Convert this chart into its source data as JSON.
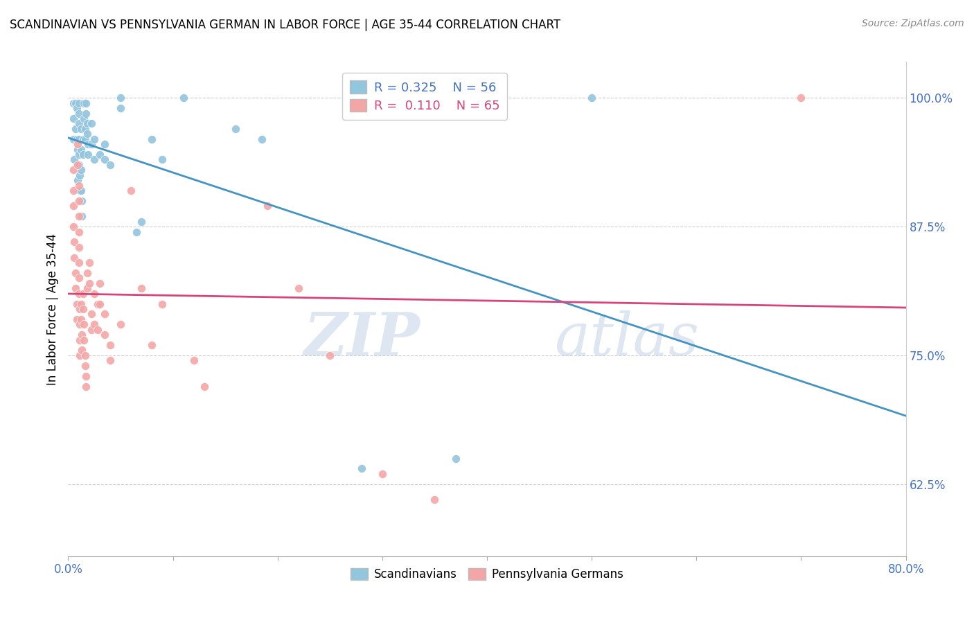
{
  "title": "SCANDINAVIAN VS PENNSYLVANIA GERMAN IN LABOR FORCE | AGE 35-44 CORRELATION CHART",
  "source": "Source: ZipAtlas.com",
  "ylabel": "In Labor Force | Age 35-44",
  "xlim": [
    0.0,
    0.8
  ],
  "ylim": [
    0.555,
    1.035
  ],
  "yticks": [
    0.625,
    0.75,
    0.875,
    1.0
  ],
  "ytick_labels": [
    "62.5%",
    "75.0%",
    "87.5%",
    "100.0%"
  ],
  "xticks": [
    0.0,
    0.1,
    0.2,
    0.3,
    0.4,
    0.5,
    0.6,
    0.7,
    0.8
  ],
  "xtick_labels": [
    "0.0%",
    "",
    "",
    "",
    "",
    "",
    "",
    "",
    "80.0%"
  ],
  "blue_color": "#92c5de",
  "pink_color": "#f4a6a6",
  "blue_line_color": "#4393c3",
  "pink_line_color": "#d6447a",
  "legend_blue_R": "0.325",
  "legend_blue_N": "56",
  "legend_pink_R": "0.110",
  "legend_pink_N": "65",
  "watermark_zip": "ZIP",
  "watermark_atlas": "atlas",
  "scandinavians": [
    [
      0.005,
      0.96
    ],
    [
      0.005,
      0.98
    ],
    [
      0.005,
      0.995
    ],
    [
      0.006,
      0.94
    ],
    [
      0.007,
      0.995
    ],
    [
      0.007,
      0.97
    ],
    [
      0.008,
      0.99
    ],
    [
      0.008,
      0.96
    ],
    [
      0.009,
      0.95
    ],
    [
      0.009,
      0.92
    ],
    [
      0.01,
      0.995
    ],
    [
      0.01,
      0.985
    ],
    [
      0.01,
      0.975
    ],
    [
      0.01,
      0.96
    ],
    [
      0.01,
      0.945
    ],
    [
      0.01,
      0.935
    ],
    [
      0.011,
      0.925
    ],
    [
      0.011,
      0.91
    ],
    [
      0.012,
      0.97
    ],
    [
      0.012,
      0.95
    ],
    [
      0.012,
      0.93
    ],
    [
      0.012,
      0.91
    ],
    [
      0.013,
      0.9
    ],
    [
      0.013,
      0.885
    ],
    [
      0.014,
      0.96
    ],
    [
      0.014,
      0.945
    ],
    [
      0.015,
      0.995
    ],
    [
      0.015,
      0.98
    ],
    [
      0.016,
      0.97
    ],
    [
      0.016,
      0.96
    ],
    [
      0.017,
      0.995
    ],
    [
      0.017,
      0.985
    ],
    [
      0.018,
      0.975
    ],
    [
      0.018,
      0.965
    ],
    [
      0.019,
      0.955
    ],
    [
      0.019,
      0.945
    ],
    [
      0.022,
      0.975
    ],
    [
      0.022,
      0.955
    ],
    [
      0.025,
      0.94
    ],
    [
      0.025,
      0.96
    ],
    [
      0.03,
      0.945
    ],
    [
      0.035,
      0.955
    ],
    [
      0.035,
      0.94
    ],
    [
      0.04,
      0.935
    ],
    [
      0.05,
      0.99
    ],
    [
      0.05,
      1.0
    ],
    [
      0.065,
      0.87
    ],
    [
      0.07,
      0.88
    ],
    [
      0.08,
      0.96
    ],
    [
      0.09,
      0.94
    ],
    [
      0.11,
      1.0
    ],
    [
      0.16,
      0.97
    ],
    [
      0.185,
      0.96
    ],
    [
      0.28,
      0.64
    ],
    [
      0.37,
      0.65
    ],
    [
      0.5,
      1.0
    ]
  ],
  "pennsylvania_germans": [
    [
      0.005,
      0.93
    ],
    [
      0.005,
      0.91
    ],
    [
      0.005,
      0.895
    ],
    [
      0.005,
      0.875
    ],
    [
      0.006,
      0.86
    ],
    [
      0.006,
      0.845
    ],
    [
      0.007,
      0.83
    ],
    [
      0.007,
      0.815
    ],
    [
      0.008,
      0.8
    ],
    [
      0.008,
      0.785
    ],
    [
      0.009,
      0.955
    ],
    [
      0.009,
      0.935
    ],
    [
      0.01,
      0.915
    ],
    [
      0.01,
      0.9
    ],
    [
      0.01,
      0.885
    ],
    [
      0.01,
      0.87
    ],
    [
      0.01,
      0.855
    ],
    [
      0.01,
      0.84
    ],
    [
      0.01,
      0.825
    ],
    [
      0.01,
      0.81
    ],
    [
      0.011,
      0.795
    ],
    [
      0.011,
      0.78
    ],
    [
      0.011,
      0.765
    ],
    [
      0.011,
      0.75
    ],
    [
      0.012,
      0.8
    ],
    [
      0.012,
      0.785
    ],
    [
      0.013,
      0.77
    ],
    [
      0.013,
      0.755
    ],
    [
      0.014,
      0.81
    ],
    [
      0.014,
      0.795
    ],
    [
      0.015,
      0.78
    ],
    [
      0.015,
      0.765
    ],
    [
      0.016,
      0.75
    ],
    [
      0.016,
      0.74
    ],
    [
      0.017,
      0.73
    ],
    [
      0.017,
      0.72
    ],
    [
      0.018,
      0.83
    ],
    [
      0.018,
      0.815
    ],
    [
      0.02,
      0.84
    ],
    [
      0.02,
      0.82
    ],
    [
      0.022,
      0.79
    ],
    [
      0.022,
      0.775
    ],
    [
      0.025,
      0.81
    ],
    [
      0.025,
      0.78
    ],
    [
      0.028,
      0.8
    ],
    [
      0.028,
      0.775
    ],
    [
      0.03,
      0.82
    ],
    [
      0.03,
      0.8
    ],
    [
      0.035,
      0.79
    ],
    [
      0.035,
      0.77
    ],
    [
      0.04,
      0.76
    ],
    [
      0.04,
      0.745
    ],
    [
      0.05,
      0.78
    ],
    [
      0.06,
      0.91
    ],
    [
      0.07,
      0.815
    ],
    [
      0.08,
      0.76
    ],
    [
      0.09,
      0.8
    ],
    [
      0.12,
      0.745
    ],
    [
      0.13,
      0.72
    ],
    [
      0.19,
      0.895
    ],
    [
      0.22,
      0.815
    ],
    [
      0.25,
      0.75
    ],
    [
      0.3,
      0.635
    ],
    [
      0.35,
      0.61
    ],
    [
      0.7,
      1.0
    ]
  ]
}
